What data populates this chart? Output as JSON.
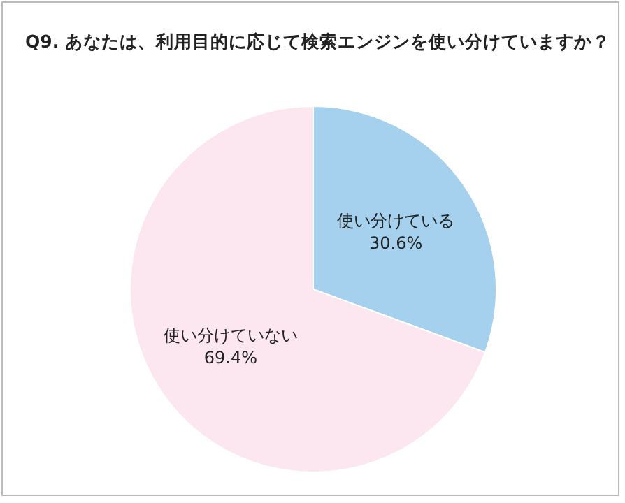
{
  "chart_data": {
    "type": "pie",
    "title": "Q9. あなたは、利用目的に応じて検索エンジンを使い分けていますか？",
    "categories": [
      "使い分けている",
      "使い分けていない"
    ],
    "values": [
      30.6,
      69.4
    ],
    "value_labels": [
      "30.6%",
      "69.4%"
    ],
    "colors": [
      "#a5d1ee",
      "#fce6ef"
    ],
    "legend": false
  }
}
